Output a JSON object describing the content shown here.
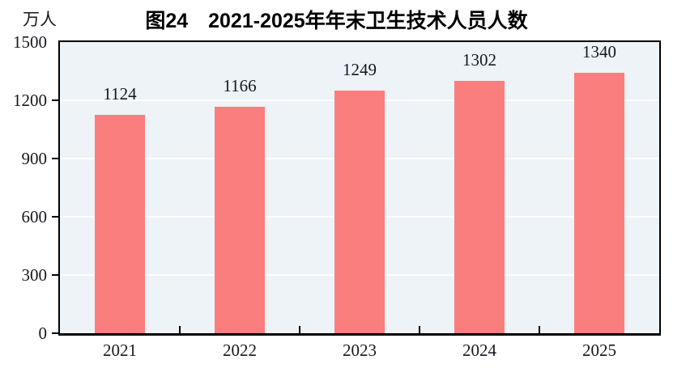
{
  "chart_data": {
    "type": "bar",
    "title": "图24　2021-2025年年末卫生技术人员人数",
    "unit_label": "万人",
    "categories": [
      "2021",
      "2022",
      "2023",
      "2024",
      "2025"
    ],
    "values": [
      1124,
      1166,
      1249,
      1302,
      1340
    ],
    "yticks": [
      0,
      300,
      600,
      900,
      1200,
      1500
    ],
    "ylim": [
      0,
      1500
    ],
    "xlabel": "",
    "ylabel": "万人",
    "grid": true,
    "legend_position": "none",
    "data_labels": true,
    "colors": {
      "bar": "#FB7E7E",
      "plot_background": "#EDF3F7",
      "gridline": "#FFFFFF",
      "axis_border": "#000000",
      "text": "#17171F"
    }
  }
}
